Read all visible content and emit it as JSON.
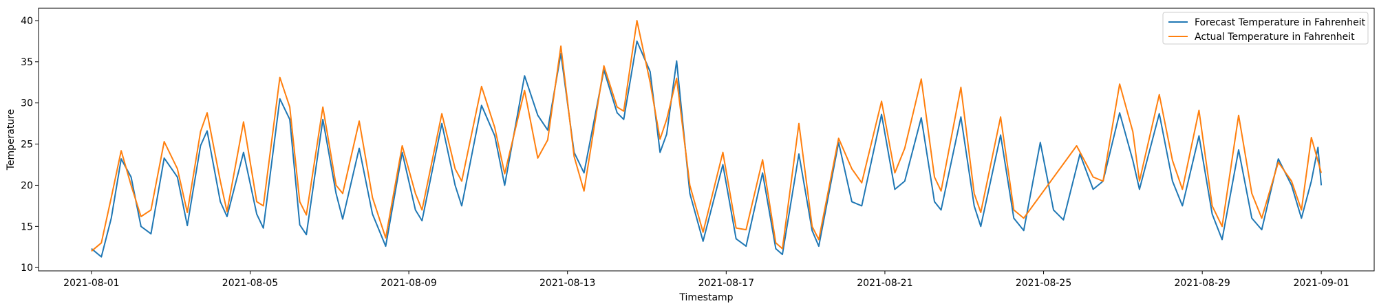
{
  "chart_data": {
    "type": "line",
    "xlabel": "Timestamp",
    "ylabel": "Temperature",
    "x_ticks": [
      "2021-08-01",
      "2021-08-05",
      "2021-08-09",
      "2021-08-13",
      "2021-08-17",
      "2021-08-21",
      "2021-08-25",
      "2021-08-29",
      "2021-09-01"
    ],
    "y_ticks": [
      10,
      15,
      20,
      25,
      30,
      35,
      40
    ],
    "xlim": [
      "2021-07-30T16:00",
      "2021-09-02T08:00"
    ],
    "ylim": [
      9.6,
      41.5
    ],
    "grid": false,
    "legend_position": "top-right",
    "series": [
      {
        "name": "Forecast Temperature in Fahrenheit",
        "color": "#1f77b4",
        "points": [
          [
            "2021-08-01T00:00",
            12.3
          ],
          [
            "2021-08-01T06:00",
            11.3
          ],
          [
            "2021-08-01T12:00",
            16.0
          ],
          [
            "2021-08-01T18:00",
            23.2
          ],
          [
            "2021-08-02T00:00",
            21.0
          ],
          [
            "2021-08-02T06:00",
            15.0
          ],
          [
            "2021-08-02T12:00",
            14.1
          ],
          [
            "2021-08-02T20:00",
            23.3
          ],
          [
            "2021-08-03T04:00",
            21.0
          ],
          [
            "2021-08-03T10:00",
            15.1
          ],
          [
            "2021-08-03T18:00",
            24.8
          ],
          [
            "2021-08-03T22:00",
            26.6
          ],
          [
            "2021-08-04T06:00",
            18.0
          ],
          [
            "2021-08-04T10:00",
            16.2
          ],
          [
            "2021-08-04T20:00",
            24.0
          ],
          [
            "2021-08-05T04:00",
            16.5
          ],
          [
            "2021-08-05T08:00",
            14.8
          ],
          [
            "2021-08-05T18:00",
            30.5
          ],
          [
            "2021-08-06T00:00",
            28.0
          ],
          [
            "2021-08-06T06:00",
            15.2
          ],
          [
            "2021-08-06T10:00",
            14.0
          ],
          [
            "2021-08-06T20:00",
            28.0
          ],
          [
            "2021-08-07T04:00",
            19.0
          ],
          [
            "2021-08-07T08:00",
            15.9
          ],
          [
            "2021-08-07T18:00",
            24.5
          ],
          [
            "2021-08-08T02:00",
            16.5
          ],
          [
            "2021-08-08T10:00",
            12.6
          ],
          [
            "2021-08-08T20:00",
            24.0
          ],
          [
            "2021-08-09T04:00",
            17.0
          ],
          [
            "2021-08-09T08:00",
            15.7
          ],
          [
            "2021-08-09T20:00",
            27.5
          ],
          [
            "2021-08-10T04:00",
            20.0
          ],
          [
            "2021-08-10T08:00",
            17.5
          ],
          [
            "2021-08-10T20:00",
            29.7
          ],
          [
            "2021-08-11T04:00",
            26.0
          ],
          [
            "2021-08-11T10:00",
            20.0
          ],
          [
            "2021-08-11T22:00",
            33.3
          ],
          [
            "2021-08-12T06:00",
            28.5
          ],
          [
            "2021-08-12T12:00",
            26.7
          ],
          [
            "2021-08-12T20:00",
            36.0
          ],
          [
            "2021-08-13T04:00",
            24.0
          ],
          [
            "2021-08-13T10:00",
            21.5
          ],
          [
            "2021-08-13T22:00",
            34.0
          ],
          [
            "2021-08-14T06:00",
            28.8
          ],
          [
            "2021-08-14T10:00",
            28.0
          ],
          [
            "2021-08-14T18:00",
            37.5
          ],
          [
            "2021-08-15T02:00",
            33.8
          ],
          [
            "2021-08-15T08:00",
            24.0
          ],
          [
            "2021-08-15T12:00",
            26.2
          ],
          [
            "2021-08-15T18:00",
            35.1
          ],
          [
            "2021-08-16T02:00",
            19.0
          ],
          [
            "2021-08-16T10:00",
            13.2
          ],
          [
            "2021-08-16T22:00",
            22.5
          ],
          [
            "2021-08-17T06:00",
            13.5
          ],
          [
            "2021-08-17T12:00",
            12.6
          ],
          [
            "2021-08-17T22:00",
            21.5
          ],
          [
            "2021-08-18T06:00",
            12.3
          ],
          [
            "2021-08-18T10:00",
            11.6
          ],
          [
            "2021-08-18T20:00",
            23.8
          ],
          [
            "2021-08-19T04:00",
            14.5
          ],
          [
            "2021-08-19T08:00",
            12.6
          ],
          [
            "2021-08-19T20:00",
            25.2
          ],
          [
            "2021-08-20T04:00",
            18.0
          ],
          [
            "2021-08-20T10:00",
            17.5
          ],
          [
            "2021-08-20T22:00",
            28.6
          ],
          [
            "2021-08-21T06:00",
            19.5
          ],
          [
            "2021-08-21T12:00",
            20.5
          ],
          [
            "2021-08-21T22:00",
            28.2
          ],
          [
            "2021-08-22T06:00",
            18.0
          ],
          [
            "2021-08-22T10:00",
            17.0
          ],
          [
            "2021-08-22T22:00",
            28.3
          ],
          [
            "2021-08-23T06:00",
            17.5
          ],
          [
            "2021-08-23T10:00",
            15.0
          ],
          [
            "2021-08-23T22:00",
            26.1
          ],
          [
            "2021-08-24T06:00",
            16.0
          ],
          [
            "2021-08-24T12:00",
            14.5
          ],
          [
            "2021-08-24T22:00",
            25.2
          ],
          [
            "2021-08-25T06:00",
            17.0
          ],
          [
            "2021-08-25T12:00",
            15.8
          ],
          [
            "2021-08-25T22:00",
            23.8
          ],
          [
            "2021-08-26T06:00",
            19.5
          ],
          [
            "2021-08-26T12:00",
            20.5
          ],
          [
            "2021-08-26T22:00",
            28.8
          ],
          [
            "2021-08-27T06:00",
            23.0
          ],
          [
            "2021-08-27T10:00",
            19.5
          ],
          [
            "2021-08-27T22:00",
            28.7
          ],
          [
            "2021-08-28T06:00",
            20.5
          ],
          [
            "2021-08-28T12:00",
            17.5
          ],
          [
            "2021-08-28T22:00",
            26.0
          ],
          [
            "2021-08-29T06:00",
            16.5
          ],
          [
            "2021-08-29T12:00",
            13.4
          ],
          [
            "2021-08-29T22:00",
            24.3
          ],
          [
            "2021-08-30T06:00",
            16.0
          ],
          [
            "2021-08-30T12:00",
            14.6
          ],
          [
            "2021-08-30T22:00",
            23.2
          ],
          [
            "2021-08-31T06:00",
            20.0
          ],
          [
            "2021-08-31T12:00",
            16.0
          ],
          [
            "2021-08-31T18:00",
            20.5
          ],
          [
            "2021-08-31T22:00",
            24.6
          ],
          [
            "2021-09-01T00:00",
            20.0
          ]
        ]
      },
      {
        "name": "Actual Temperature in Fahrenheit",
        "color": "#ff7f0e",
        "points": [
          [
            "2021-08-01T00:00",
            12.0
          ],
          [
            "2021-08-01T06:00",
            13.0
          ],
          [
            "2021-08-01T12:00",
            18.5
          ],
          [
            "2021-08-01T18:00",
            24.2
          ],
          [
            "2021-08-02T00:00",
            20.0
          ],
          [
            "2021-08-02T06:00",
            16.2
          ],
          [
            "2021-08-02T12:00",
            17.0
          ],
          [
            "2021-08-02T20:00",
            25.3
          ],
          [
            "2021-08-03T04:00",
            22.0
          ],
          [
            "2021-08-03T10:00",
            16.7
          ],
          [
            "2021-08-03T18:00",
            26.5
          ],
          [
            "2021-08-03T22:00",
            28.8
          ],
          [
            "2021-08-04T06:00",
            20.5
          ],
          [
            "2021-08-04T10:00",
            16.8
          ],
          [
            "2021-08-04T20:00",
            27.7
          ],
          [
            "2021-08-05T04:00",
            18.0
          ],
          [
            "2021-08-05T08:00",
            17.5
          ],
          [
            "2021-08-05T18:00",
            33.1
          ],
          [
            "2021-08-06T00:00",
            29.5
          ],
          [
            "2021-08-06T06:00",
            18.0
          ],
          [
            "2021-08-06T10:00",
            16.4
          ],
          [
            "2021-08-06T20:00",
            29.5
          ],
          [
            "2021-08-07T04:00",
            20.0
          ],
          [
            "2021-08-07T08:00",
            19.0
          ],
          [
            "2021-08-07T18:00",
            27.8
          ],
          [
            "2021-08-08T02:00",
            18.5
          ],
          [
            "2021-08-08T10:00",
            13.6
          ],
          [
            "2021-08-08T20:00",
            24.8
          ],
          [
            "2021-08-09T04:00",
            19.0
          ],
          [
            "2021-08-09T08:00",
            17.0
          ],
          [
            "2021-08-09T20:00",
            28.7
          ],
          [
            "2021-08-10T04:00",
            22.0
          ],
          [
            "2021-08-10T08:00",
            20.5
          ],
          [
            "2021-08-10T20:00",
            32.0
          ],
          [
            "2021-08-11T04:00",
            27.0
          ],
          [
            "2021-08-11T10:00",
            21.4
          ],
          [
            "2021-08-11T22:00",
            31.5
          ],
          [
            "2021-08-12T06:00",
            23.3
          ],
          [
            "2021-08-12T12:00",
            25.5
          ],
          [
            "2021-08-12T20:00",
            36.9
          ],
          [
            "2021-08-13T04:00",
            23.5
          ],
          [
            "2021-08-13T10:00",
            19.3
          ],
          [
            "2021-08-13T22:00",
            34.5
          ],
          [
            "2021-08-14T06:00",
            29.5
          ],
          [
            "2021-08-14T10:00",
            29.0
          ],
          [
            "2021-08-14T18:00",
            40.0
          ],
          [
            "2021-08-15T02:00",
            32.5
          ],
          [
            "2021-08-15T08:00",
            25.6
          ],
          [
            "2021-08-15T12:00",
            28.0
          ],
          [
            "2021-08-15T18:00",
            33.0
          ],
          [
            "2021-08-16T02:00",
            20.0
          ],
          [
            "2021-08-16T10:00",
            14.3
          ],
          [
            "2021-08-16T22:00",
            24.0
          ],
          [
            "2021-08-17T06:00",
            14.8
          ],
          [
            "2021-08-17T12:00",
            14.6
          ],
          [
            "2021-08-17T22:00",
            23.1
          ],
          [
            "2021-08-18T06:00",
            13.0
          ],
          [
            "2021-08-18T10:00",
            12.3
          ],
          [
            "2021-08-18T20:00",
            27.5
          ],
          [
            "2021-08-19T04:00",
            15.0
          ],
          [
            "2021-08-19T08:00",
            13.4
          ],
          [
            "2021-08-19T20:00",
            25.7
          ],
          [
            "2021-08-20T04:00",
            22.0
          ],
          [
            "2021-08-20T10:00",
            20.3
          ],
          [
            "2021-08-20T22:00",
            30.2
          ],
          [
            "2021-08-21T06:00",
            21.5
          ],
          [
            "2021-08-21T12:00",
            24.5
          ],
          [
            "2021-08-21T22:00",
            32.9
          ],
          [
            "2021-08-22T06:00",
            21.0
          ],
          [
            "2021-08-22T10:00",
            19.3
          ],
          [
            "2021-08-22T22:00",
            31.9
          ],
          [
            "2021-08-23T06:00",
            19.0
          ],
          [
            "2021-08-23T10:00",
            16.7
          ],
          [
            "2021-08-23T22:00",
            28.3
          ],
          [
            "2021-08-24T06:00",
            17.0
          ],
          [
            "2021-08-24T12:00",
            16.0
          ],
          [
            "2021-08-25T20:00",
            24.8
          ],
          [
            "2021-08-26T06:00",
            21.0
          ],
          [
            "2021-08-26T12:00",
            20.5
          ],
          [
            "2021-08-26T22:00",
            32.3
          ],
          [
            "2021-08-27T06:00",
            26.5
          ],
          [
            "2021-08-27T10:00",
            20.5
          ],
          [
            "2021-08-27T22:00",
            31.0
          ],
          [
            "2021-08-28T06:00",
            23.0
          ],
          [
            "2021-08-28T12:00",
            19.5
          ],
          [
            "2021-08-28T22:00",
            29.1
          ],
          [
            "2021-08-29T06:00",
            17.5
          ],
          [
            "2021-08-29T12:00",
            15.0
          ],
          [
            "2021-08-29T22:00",
            28.5
          ],
          [
            "2021-08-30T06:00",
            19.0
          ],
          [
            "2021-08-30T12:00",
            16.0
          ],
          [
            "2021-08-30T22:00",
            22.8
          ],
          [
            "2021-08-31T06:00",
            20.5
          ],
          [
            "2021-08-31T12:00",
            17.0
          ],
          [
            "2021-08-31T18:00",
            25.8
          ],
          [
            "2021-09-01T00:00",
            21.5
          ]
        ]
      }
    ]
  }
}
